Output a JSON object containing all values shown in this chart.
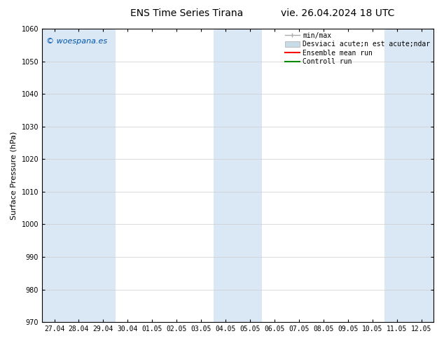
{
  "title": "ENS Time Series Tirana",
  "title_right": "vie. 26.04.2024 18 UTC",
  "ylabel": "Surface Pressure (hPa)",
  "ylim": [
    970,
    1060
  ],
  "yticks": [
    970,
    980,
    990,
    1000,
    1010,
    1020,
    1030,
    1040,
    1050,
    1060
  ],
  "x_tick_labels": [
    "27.04",
    "28.04",
    "29.04",
    "30.04",
    "01.05",
    "02.05",
    "03.05",
    "04.05",
    "05.05",
    "06.05",
    "07.05",
    "08.05",
    "09.05",
    "10.05",
    "11.05",
    "12.05"
  ],
  "watermark": "© woespana.es",
  "watermark_color": "#0055aa",
  "shade_color": "#dae8f5",
  "shade_ranges": [
    [
      0,
      2
    ],
    [
      7,
      8
    ],
    [
      14,
      15
    ]
  ],
  "legend_label_minmax": "min/max",
  "legend_label_std": "Desviaci acute;n est acute;ndar",
  "legend_label_ens": "Ensemble mean run",
  "legend_label_ctrl": "Controll run",
  "legend_color_minmax": "#aaaaaa",
  "legend_color_std": "#c8dce8",
  "legend_color_ens": "#ff0000",
  "legend_color_ctrl": "#008800",
  "background_color": "#ffffff",
  "plot_bg_color": "#ffffff",
  "grid_color": "#cccccc",
  "spine_color": "#000000",
  "title_fontsize": 10,
  "ylabel_fontsize": 8,
  "tick_fontsize": 7,
  "watermark_fontsize": 8,
  "legend_fontsize": 7
}
